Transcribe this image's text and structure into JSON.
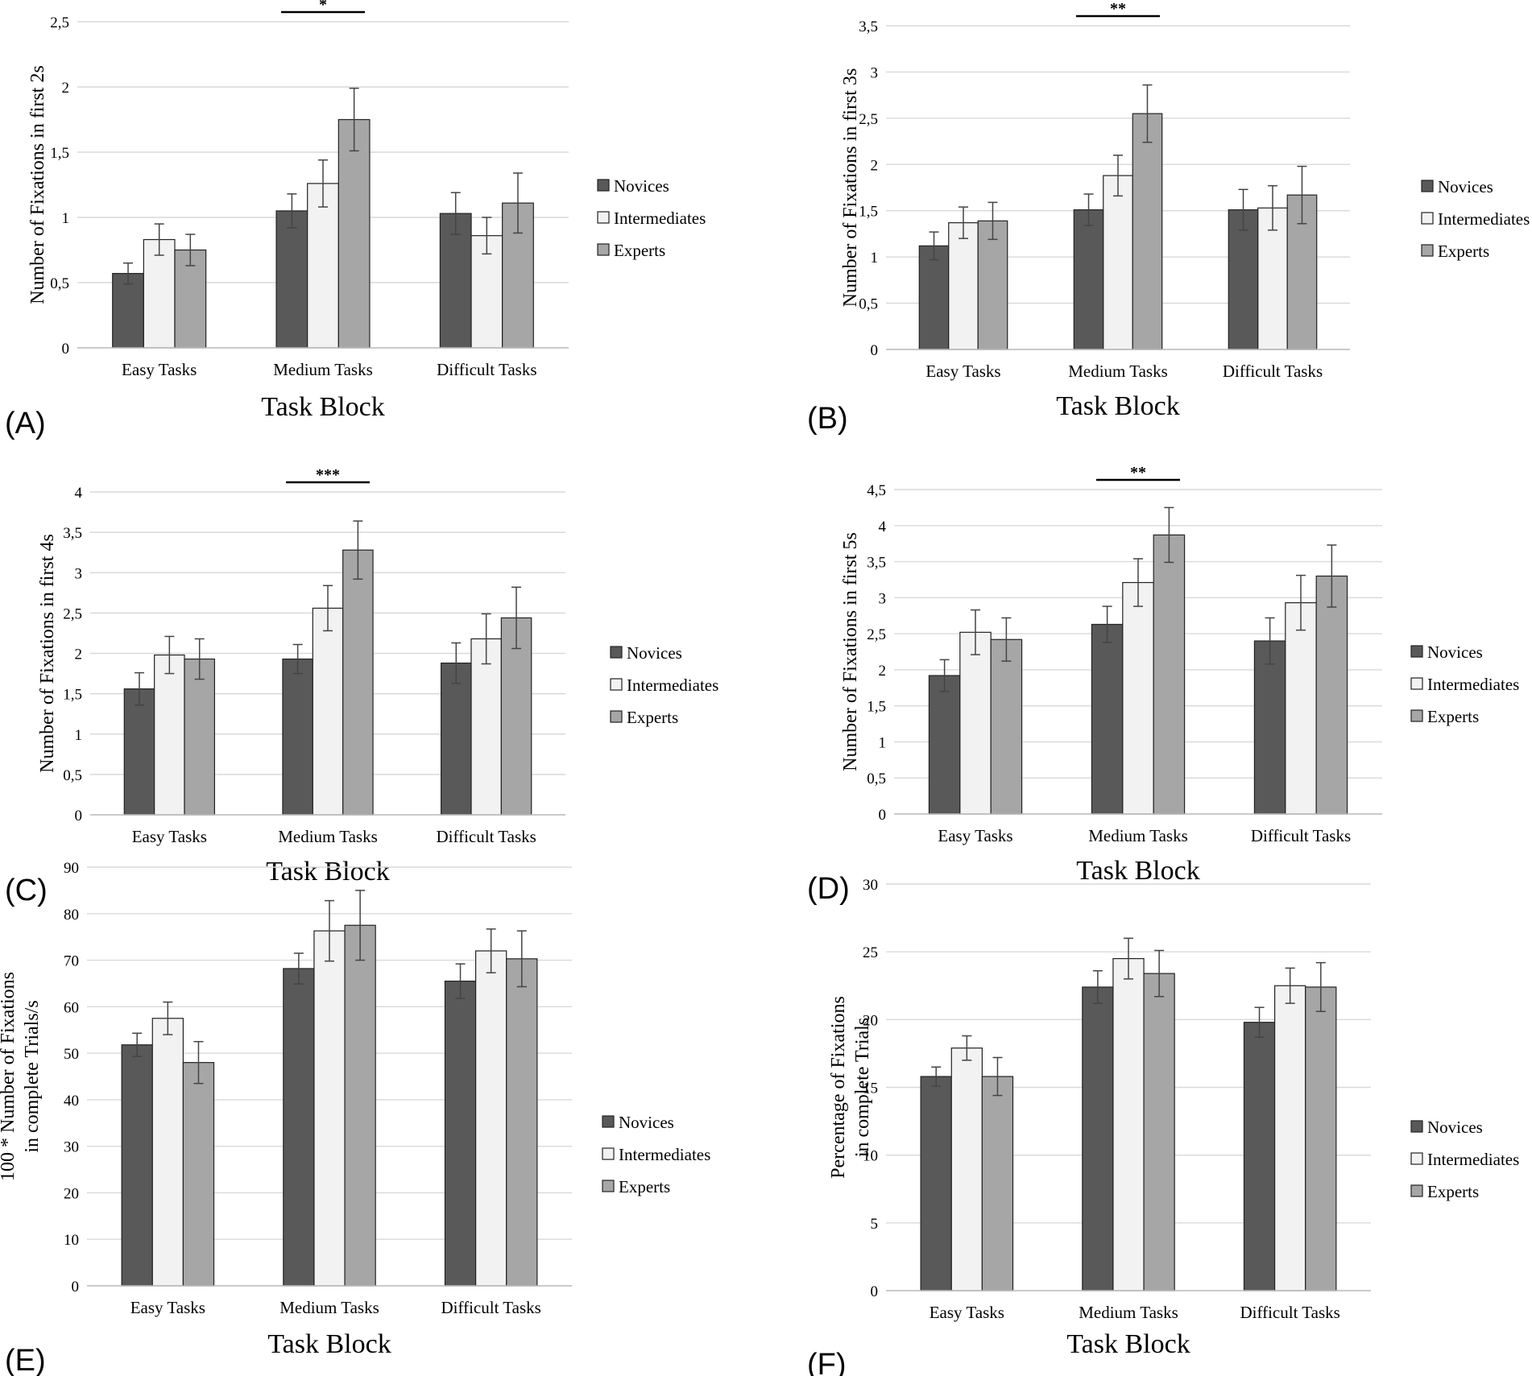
{
  "figure": {
    "legend": [
      "Novices",
      "Intermediates",
      "Experts"
    ],
    "series_colors": [
      "#595959",
      "#f2f2f2",
      "#a6a6a6"
    ],
    "categories": [
      "Easy Tasks",
      "Medium Tasks",
      "Difficult Tasks"
    ],
    "xlabel": "Task Block"
  },
  "chart_data": [
    {
      "panel": "(A)",
      "type": "bar",
      "ylabel": [
        "Number of Fixations in first 2s"
      ],
      "ylim": [
        0,
        2.5
      ],
      "yticks": [
        "0",
        "0,5",
        "1",
        "1,5",
        "2",
        "2,5"
      ],
      "significance": {
        "label": "*",
        "category": "Medium Tasks"
      },
      "series": [
        {
          "name": "Novices",
          "values": [
            0.57,
            1.05,
            1.03
          ],
          "errors": [
            0.08,
            0.13,
            0.16
          ]
        },
        {
          "name": "Intermediates",
          "values": [
            0.83,
            1.26,
            0.86
          ],
          "errors": [
            0.12,
            0.18,
            0.14
          ]
        },
        {
          "name": "Experts",
          "values": [
            0.75,
            1.75,
            1.11
          ],
          "errors": [
            0.12,
            0.24,
            0.23
          ]
        }
      ]
    },
    {
      "panel": "(B)",
      "type": "bar",
      "ylabel": [
        "Number of Fixations in first 3s"
      ],
      "ylim": [
        0,
        3.5
      ],
      "yticks": [
        "0",
        "0,5",
        "1",
        "1,5",
        "2",
        "2,5",
        "3",
        "3,5"
      ],
      "significance": {
        "label": "**",
        "category": "Medium Tasks"
      },
      "series": [
        {
          "name": "Novices",
          "values": [
            1.12,
            1.51,
            1.51
          ],
          "errors": [
            0.15,
            0.17,
            0.22
          ]
        },
        {
          "name": "Intermediates",
          "values": [
            1.37,
            1.88,
            1.53
          ],
          "errors": [
            0.17,
            0.22,
            0.24
          ]
        },
        {
          "name": "Experts",
          "values": [
            1.39,
            2.55,
            1.67
          ],
          "errors": [
            0.2,
            0.31,
            0.31
          ]
        }
      ]
    },
    {
      "panel": "(C)",
      "type": "bar",
      "ylabel": [
        "Number of Fixations in first 4s"
      ],
      "ylim": [
        0,
        4
      ],
      "yticks": [
        "0",
        "0,5",
        "1",
        "1,5",
        "2",
        "2,5",
        "3",
        "3,5",
        "4"
      ],
      "significance": {
        "label": "***",
        "category": "Medium Tasks"
      },
      "series": [
        {
          "name": "Novices",
          "values": [
            1.56,
            1.93,
            1.88
          ],
          "errors": [
            0.2,
            0.18,
            0.25
          ]
        },
        {
          "name": "Intermediates",
          "values": [
            1.98,
            2.56,
            2.18
          ],
          "errors": [
            0.23,
            0.28,
            0.31
          ]
        },
        {
          "name": "Experts",
          "values": [
            1.93,
            3.28,
            2.44
          ],
          "errors": [
            0.25,
            0.36,
            0.38
          ]
        }
      ]
    },
    {
      "panel": "(D)",
      "type": "bar",
      "ylabel": [
        "Number of Fixations in first 5s"
      ],
      "ylim": [
        0,
        4.5
      ],
      "yticks": [
        "0",
        "0,5",
        "1",
        "1,5",
        "2",
        "2,5",
        "3",
        "3,5",
        "4",
        "4,5"
      ],
      "significance": {
        "label": "**",
        "category": "Medium Tasks"
      },
      "series": [
        {
          "name": "Novices",
          "values": [
            1.92,
            2.63,
            2.4
          ],
          "errors": [
            0.22,
            0.25,
            0.32
          ]
        },
        {
          "name": "Intermediates",
          "values": [
            2.52,
            3.21,
            2.93
          ],
          "errors": [
            0.31,
            0.33,
            0.38
          ]
        },
        {
          "name": "Experts",
          "values": [
            2.42,
            3.87,
            3.3
          ],
          "errors": [
            0.3,
            0.38,
            0.43
          ]
        }
      ]
    },
    {
      "panel": "(E)",
      "type": "bar",
      "ylabel": [
        "100 * Number of Fixations",
        "in complete Trials/s"
      ],
      "ylim": [
        0,
        90
      ],
      "yticks": [
        "0",
        "10",
        "20",
        "30",
        "40",
        "50",
        "60",
        "70",
        "80",
        "90"
      ],
      "significance": null,
      "series": [
        {
          "name": "Novices",
          "values": [
            51.8,
            68.2,
            65.5
          ],
          "errors": [
            2.5,
            3.3,
            3.7
          ]
        },
        {
          "name": "Intermediates",
          "values": [
            57.5,
            76.3,
            72
          ],
          "errors": [
            3.5,
            6.5,
            4.7
          ]
        },
        {
          "name": "Experts",
          "values": [
            48,
            77.5,
            70.3
          ],
          "errors": [
            4.5,
            7.5,
            6
          ]
        }
      ]
    },
    {
      "panel": "(F)",
      "type": "bar",
      "ylabel": [
        "Percentage of Fixations",
        "in complete Trials"
      ],
      "ylim": [
        0,
        30
      ],
      "yticks": [
        "0",
        "5",
        "10",
        "15",
        "20",
        "25",
        "30"
      ],
      "significance": null,
      "series": [
        {
          "name": "Novices",
          "values": [
            15.8,
            22.4,
            19.8
          ],
          "errors": [
            0.7,
            1.2,
            1.1
          ]
        },
        {
          "name": "Intermediates",
          "values": [
            17.9,
            24.5,
            22.5
          ],
          "errors": [
            0.9,
            1.5,
            1.3
          ]
        },
        {
          "name": "Experts",
          "values": [
            15.8,
            23.4,
            22.4
          ],
          "errors": [
            1.4,
            1.7,
            1.8
          ]
        }
      ]
    }
  ]
}
